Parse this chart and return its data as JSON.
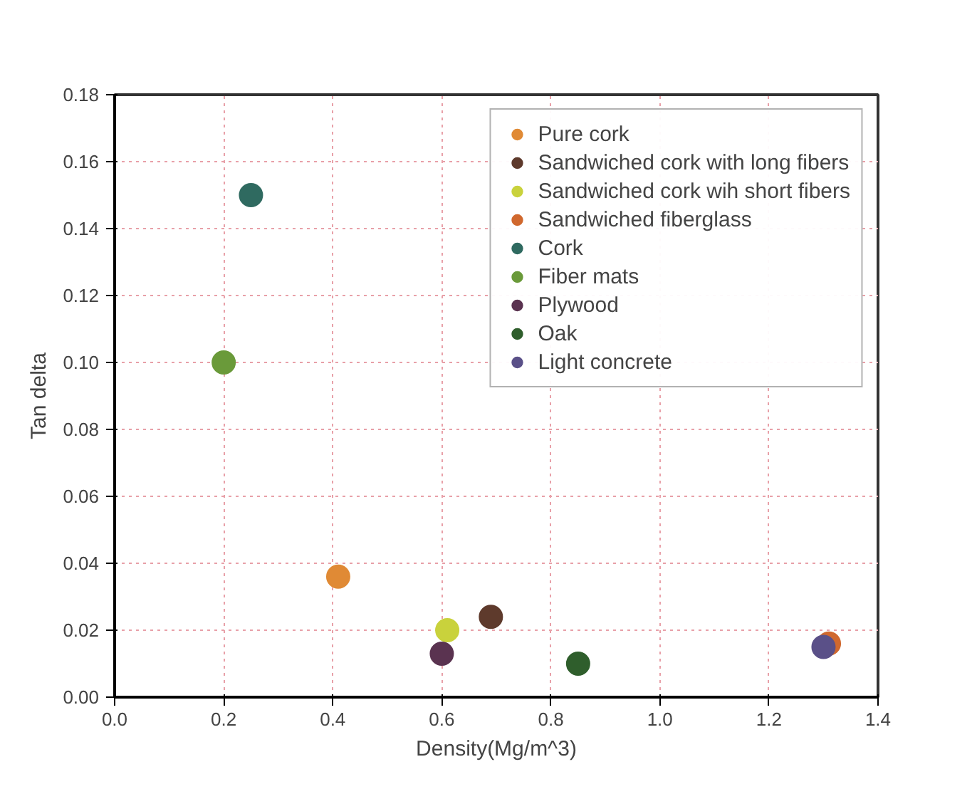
{
  "chart_data": {
    "type": "scatter",
    "xlabel": "Density(Mg/m^3)",
    "ylabel": "Tan delta",
    "xlim": [
      0,
      1.4
    ],
    "ylim": [
      0,
      0.18
    ],
    "xticks": [
      "0.0",
      0.2,
      0.4,
      0.6,
      0.8,
      "1.0",
      1.2,
      1.4
    ],
    "yticks": [
      "0.00",
      0.02,
      0.04,
      0.06,
      0.08,
      "0.10",
      0.12,
      0.14,
      0.16,
      0.18
    ],
    "grid": true,
    "legend": "top right",
    "marker": "circle",
    "series": [
      {
        "name": "Pure cork",
        "color": "#e08a35",
        "x": [
          0.41
        ],
        "values": [
          0.036
        ]
      },
      {
        "name": "Sandwiched cork with long fibers",
        "color": "#5e3a2c",
        "x": [
          0.69
        ],
        "values": [
          0.024
        ]
      },
      {
        "name": "Sandwiched cork wih short fibers",
        "color": "#c9d23c",
        "x": [
          0.61
        ],
        "values": [
          0.02
        ]
      },
      {
        "name": "Sandwiched fiberglass",
        "color": "#d0682e",
        "x": [
          1.31
        ],
        "values": [
          0.016
        ]
      },
      {
        "name": "Cork",
        "color": "#2f6a60",
        "x": [
          0.25
        ],
        "values": [
          0.15
        ]
      },
      {
        "name": "Fiber mats",
        "color": "#6a9a3a",
        "x": [
          0.2
        ],
        "values": [
          0.1
        ]
      },
      {
        "name": "Plywood",
        "color": "#5a3350",
        "x": [
          0.6
        ],
        "values": [
          0.013
        ]
      },
      {
        "name": "Oak",
        "color": "#2f5e2c",
        "x": [
          0.85
        ],
        "values": [
          0.01
        ]
      },
      {
        "name": "Light concrete",
        "color": "#5a5088",
        "x": [
          1.3
        ],
        "values": [
          0.015
        ]
      }
    ]
  }
}
